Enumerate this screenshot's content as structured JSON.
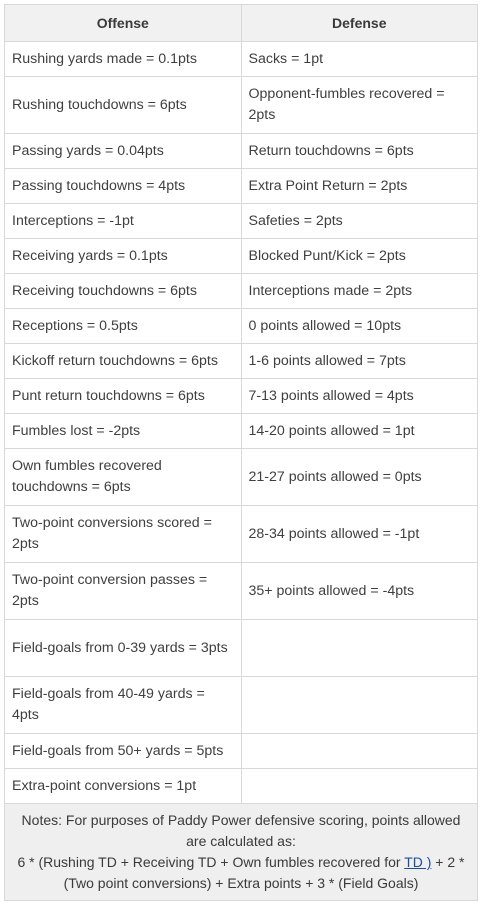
{
  "headers": {
    "offense": "Offense",
    "defense": "Defense"
  },
  "rows": [
    {
      "offense": "Rushing yards made = 0.1pts",
      "defense": "Sacks = 1pt"
    },
    {
      "offense": "Rushing touchdowns = 6pts",
      "defense": "Opponent-fumbles recovered = 2pts"
    },
    {
      "offense": "Passing yards = 0.04pts",
      "defense": "Return touchdowns = 6pts"
    },
    {
      "offense": "Passing touchdowns = 4pts",
      "defense": "Extra Point Return = 2pts"
    },
    {
      "offense": "Interceptions = -1pt",
      "defense": "Safeties = 2pts"
    },
    {
      "offense": "Receiving yards = 0.1pts",
      "defense": "Blocked Punt/Kick = 2pts"
    },
    {
      "offense": "Receiving touchdowns = 6pts",
      "defense": "Interceptions made = 2pts"
    },
    {
      "offense": "Receptions = 0.5pts",
      "defense": "0 points allowed = 10pts"
    },
    {
      "offense": "Kickoff return touchdowns = 6pts",
      "defense": "1-6 points allowed = 7pts"
    },
    {
      "offense": "Punt return touchdowns = 6pts",
      "defense": "7-13 points allowed = 4pts"
    },
    {
      "offense": "Fumbles lost = -2pts",
      "defense": "14-20 points allowed = 1pt"
    },
    {
      "offense": "Own fumbles recovered touchdowns = 6pts",
      "defense": "21-27 points allowed = 0pts"
    },
    {
      "offense": "Two-point conversions scored = 2pts",
      "defense": "28-34 points allowed = -1pt"
    },
    {
      "offense": "Two-point conversion passes = 2pts",
      "defense": "35+ points allowed = -4pts"
    },
    {
      "offense": "Field-goals from 0-39 yards = 3pts",
      "defense": ""
    },
    {
      "offense": "Field-goals from 40-49 yards = 4pts",
      "defense": ""
    },
    {
      "offense": "Field-goals from 50+ yards = 5pts",
      "defense": ""
    },
    {
      "offense": "Extra-point conversions = 1pt",
      "defense": ""
    }
  ],
  "notes": {
    "line1": "Notes: For purposes of Paddy Power defensive scoring, points allowed are calculated as:",
    "formula_start": "6 * (Rushing TD + Receiving TD + Own fumbles recovered for ",
    "link_text": "TD )",
    "formula_end": " + 2 * (Two point conversions) + Extra points + 3 * (Field Goals)"
  }
}
